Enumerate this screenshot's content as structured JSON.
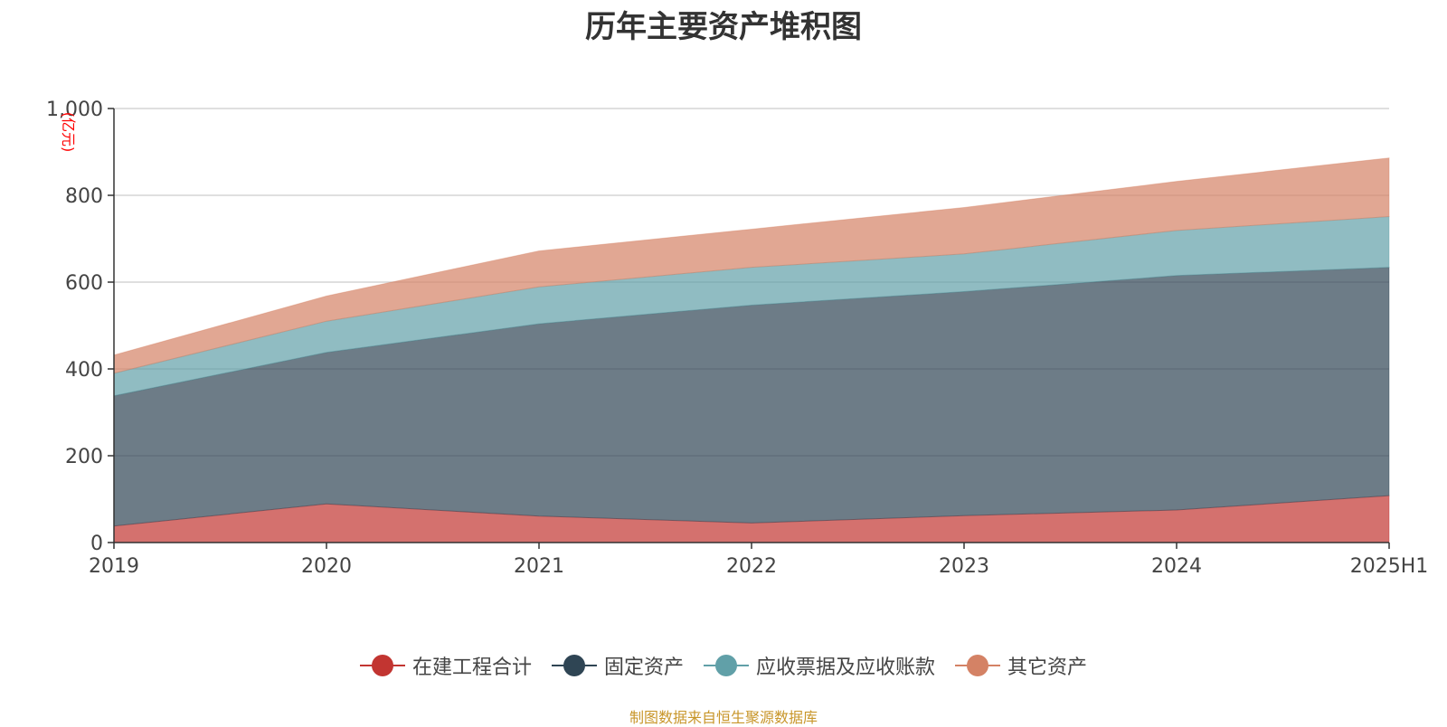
{
  "colors": {
    "in_construction": "#c23531",
    "fixed_assets": "#2f4554",
    "receivables": "#61a0a8",
    "other_assets": "#d48265",
    "axis_unit": "#ff0000",
    "source_note": "#c8962a"
  },
  "chart_data": {
    "type": "area",
    "stacked": true,
    "title": "历年主要资产堆积图",
    "ylabel": "(亿元)",
    "xlabel": "",
    "x": [
      "2019",
      "2020",
      "2021",
      "2022",
      "2023",
      "2024",
      "2025H1"
    ],
    "ylim": [
      0,
      1000
    ],
    "yticks": [
      "0",
      "200",
      "400",
      "600",
      "800",
      "1,000"
    ],
    "ytick_values": [
      0,
      200,
      400,
      600,
      800,
      1000
    ],
    "grid": true,
    "legend_position": "bottom-center",
    "series": [
      {
        "name": "在建工程合计",
        "values": [
          38,
          89,
          61,
          45,
          62,
          75,
          108
        ]
      },
      {
        "name": "固定资产",
        "values": [
          300,
          349,
          443,
          502,
          516,
          540,
          526
        ]
      },
      {
        "name": "应收票据及应收账款",
        "values": [
          52,
          72,
          85,
          87,
          87,
          104,
          117
        ]
      },
      {
        "name": "其它资产",
        "values": [
          42,
          58,
          83,
          88,
          107,
          113,
          135
        ]
      }
    ]
  },
  "source_note": "制图数据来自恒生聚源数据库"
}
